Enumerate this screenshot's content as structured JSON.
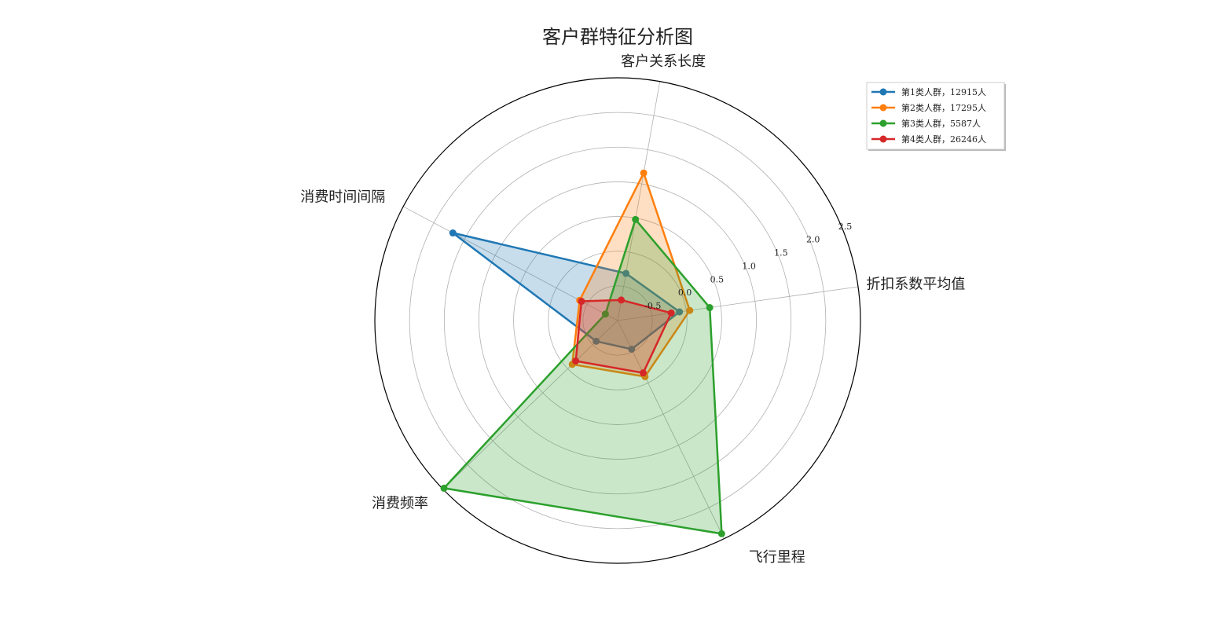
{
  "chart_data": {
    "type": "radar",
    "title": "客户群特征分析图",
    "axes": [
      "客户关系长度",
      "消费时间间隔",
      "消费频率",
      "飞行里程",
      "折扣系数平均值"
    ],
    "rlim": [
      -1.0,
      2.5
    ],
    "r_ticks": [
      "-0.5",
      "0.0",
      "0.5",
      "1.0",
      "1.5",
      "2.0",
      "2.5"
    ],
    "grid": true,
    "legend_position": "top-right",
    "series": [
      {
        "name": "第1类人群，12915人",
        "color": "#1f77b4",
        "values": [
          -0.31,
          1.69,
          -0.57,
          -0.54,
          -0.1
        ]
      },
      {
        "name": "第2类人群，17295人",
        "color": "#ff7f0e",
        "values": [
          1.16,
          -0.38,
          -0.09,
          -0.1,
          0.05
        ]
      },
      {
        "name": "第3类人群，5587人",
        "color": "#2ca02c",
        "values": [
          0.48,
          -0.8,
          2.48,
          2.42,
          0.34
        ]
      },
      {
        "name": "第4类人群，26246人",
        "color": "#d62728",
        "values": [
          -0.7,
          -0.41,
          -0.16,
          -0.16,
          -0.22
        ]
      }
    ]
  }
}
